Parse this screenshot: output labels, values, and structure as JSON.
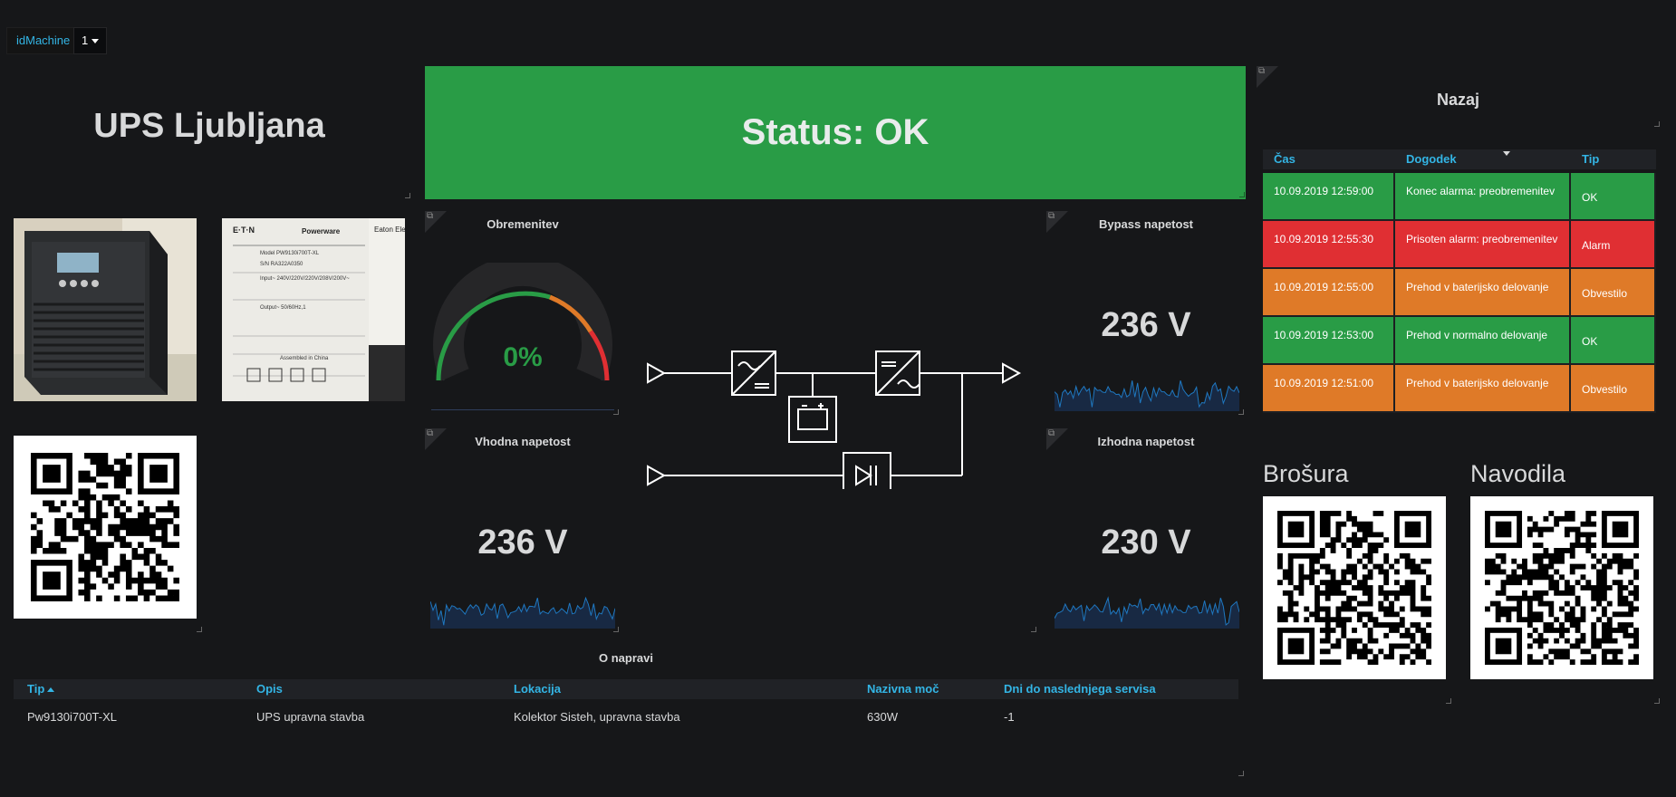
{
  "variables": {
    "label": "idMachine",
    "value": "1"
  },
  "title": "UPS Ljubljana",
  "status": {
    "text": "Status: OK",
    "color": "#299c46"
  },
  "panels": {
    "load": {
      "title": "Obremenitev",
      "value": "0%",
      "percent": 0
    },
    "bypass": {
      "title": "Bypass napetost",
      "value": "236 V"
    },
    "input": {
      "title": "Vhodna napetost",
      "value": "236 V"
    },
    "output": {
      "title": "Izhodna napetost",
      "value": "230 V"
    }
  },
  "nazaj": "Nazaj",
  "events": {
    "headers": [
      "Čas",
      "Dogodek",
      "Tip"
    ],
    "rows": [
      {
        "time": "10.09.2019 12:59:00",
        "event": "Konec alarma: preobremenitev",
        "type": "OK",
        "level": "ok"
      },
      {
        "time": "10.09.2019 12:55:30",
        "event": "Prisoten alarm: preobremenitev",
        "type": "Alarm",
        "level": "alarm"
      },
      {
        "time": "10.09.2019 12:55:00",
        "event": "Prehod v baterijsko delovanje",
        "type": "Obvestilo",
        "level": "warn"
      },
      {
        "time": "10.09.2019 12:53:00",
        "event": "Prehod v normalno delovanje",
        "type": "OK",
        "level": "ok"
      },
      {
        "time": "10.09.2019 12:51:00",
        "event": "Prehod v baterijsko delovanje",
        "type": "Obvestilo",
        "level": "warn"
      }
    ]
  },
  "docs": {
    "brochure": "Brošura",
    "manual": "Navodila"
  },
  "device": {
    "title": "O napravi",
    "headers": [
      "Tip",
      "Opis",
      "Lokacija",
      "Nazivna moč",
      "Dni do naslednjega servisa"
    ],
    "row": [
      "Pw9130i700T-XL",
      "UPS upravna stavba",
      "Kolektor Sisteh, upravna stavba",
      "630W",
      "-1"
    ]
  },
  "label_plate": {
    "brand": "E·T·N",
    "product": "Powerware",
    "model": "Model PW9130i700T-XL",
    "sn": "S/N  RA322A0350",
    "input": "Input~ 240V/220V/220V/208V/200V~",
    "output": "Output~ 50/60Hz,1 ",
    "assembled": "Assembled in China",
    "side": "Eaton Electr"
  }
}
